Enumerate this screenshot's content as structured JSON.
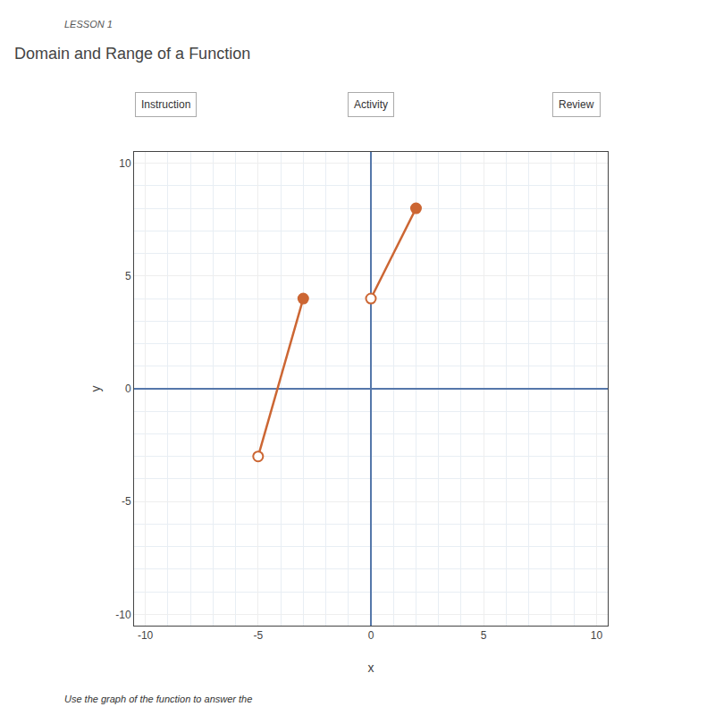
{
  "chart_data": {
    "type": "line",
    "title": "Domain and Range of a Function",
    "annotations": [
      "LESSON 1",
      "Instruction",
      "Activity",
      "Review",
      "Use the graph of the function to answer the"
    ],
    "xlabel": "x",
    "ylabel": "y",
    "xlim": [
      -10.5,
      10.5
    ],
    "ylim": [
      -10.5,
      10.5
    ],
    "xticks": [
      -10,
      -5,
      0,
      5,
      10
    ],
    "yticks": [
      -10,
      -5,
      0,
      5,
      10
    ],
    "grid": true,
    "color": "#CC6633",
    "series": [
      {
        "x": [
          -5,
          -3
        ],
        "values": [
          -3,
          4
        ],
        "marker": [
          "open",
          "closed"
        ]
      },
      {
        "x": [
          0,
          2
        ],
        "values": [
          4,
          8
        ],
        "marker": [
          "open",
          "closed"
        ]
      }
    ]
  }
}
